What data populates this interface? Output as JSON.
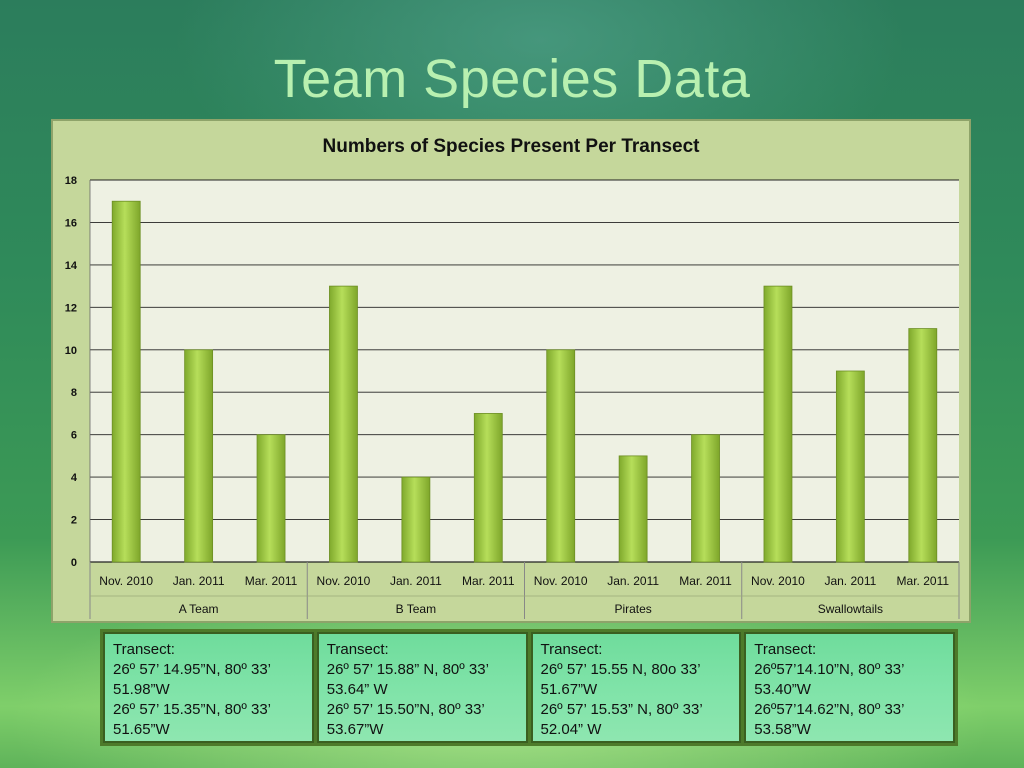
{
  "slide": {
    "title": "Team Species Data"
  },
  "chart_data": {
    "type": "bar",
    "title": "Numbers of Species Present Per Transect",
    "xlabel": "",
    "ylabel": "",
    "ylim": [
      0,
      18
    ],
    "yticks": [
      0,
      2,
      4,
      6,
      8,
      10,
      12,
      14,
      16,
      18
    ],
    "grid": true,
    "legend": "none",
    "bar_color": "#94c43c",
    "groups": [
      {
        "name": "A Team",
        "categories": [
          "Nov. 2010",
          "Jan. 2011",
          "Mar. 2011"
        ],
        "values": [
          17,
          10,
          6
        ]
      },
      {
        "name": "B Team",
        "categories": [
          "Nov. 2010",
          "Jan. 2011",
          "Mar. 2011"
        ],
        "values": [
          13,
          4,
          7
        ]
      },
      {
        "name": "Pirates",
        "categories": [
          "Nov. 2010",
          "Jan. 2011",
          "Mar. 2011"
        ],
        "values": [
          10,
          5,
          6
        ]
      },
      {
        "name": "Swallowtails",
        "categories": [
          "Nov. 2010",
          "Jan. 2011",
          "Mar. 2011"
        ],
        "values": [
          13,
          9,
          11
        ]
      }
    ]
  },
  "transects": [
    {
      "heading": "Transect:",
      "line1": "26º 57’ 14.95”N, 80º 33’ 51.98”W",
      "line2": "26º 57’ 15.35”N, 80º 33’ 51.65”W"
    },
    {
      "heading": "Transect:",
      "line1": "26º 57’ 15.88” N, 80º 33’ 53.64” W",
      "line2": "26º 57’ 15.50”N, 80º 33’ 53.67”W"
    },
    {
      "heading": "Transect:",
      "line1": "26º 57’ 15.55 N, 80o 33’ 51.67”W",
      "line2": "26º 57’ 15.53” N, 80º 33’ 52.04” W"
    },
    {
      "heading": "Transect:",
      "line1": "26º57’14.10”N, 80º 33’ 53.40”W",
      "line2": "26º57’14.62”N, 80º 33’ 53.58”W"
    }
  ]
}
